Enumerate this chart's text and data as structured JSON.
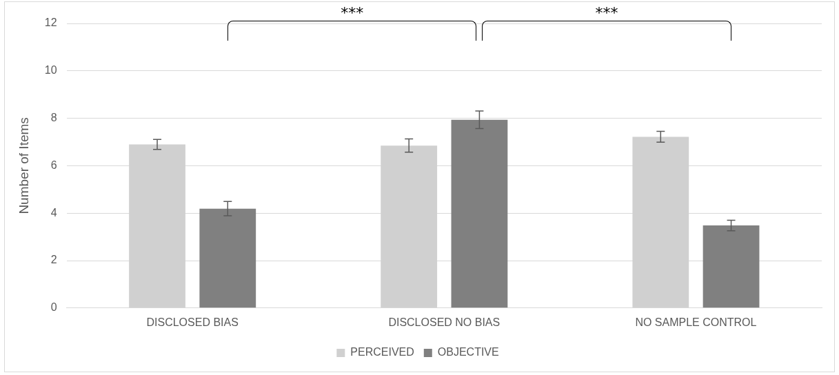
{
  "chart_data": {
    "type": "bar",
    "ylabel": "Number of Items",
    "categories": [
      "DISCLOSED BIAS",
      "DISCLOSED NO BIAS",
      "NO SAMPLE CONTROL"
    ],
    "series": [
      {
        "name": "PERCEIVED",
        "color": "#d0d0d0",
        "values": [
          6.9,
          6.85,
          7.22
        ],
        "errors": [
          0.21,
          0.28,
          0.23
        ]
      },
      {
        "name": "OBJECTIVE",
        "color": "#808080",
        "values": [
          4.19,
          7.94,
          3.48
        ],
        "errors": [
          0.3,
          0.37,
          0.22
        ]
      }
    ],
    "ylim": [
      0,
      12
    ],
    "yticks": [
      0,
      2,
      4,
      6,
      8,
      10,
      12
    ],
    "grid": "y",
    "legend": "bottom",
    "annotations": [
      "***",
      "***"
    ]
  }
}
